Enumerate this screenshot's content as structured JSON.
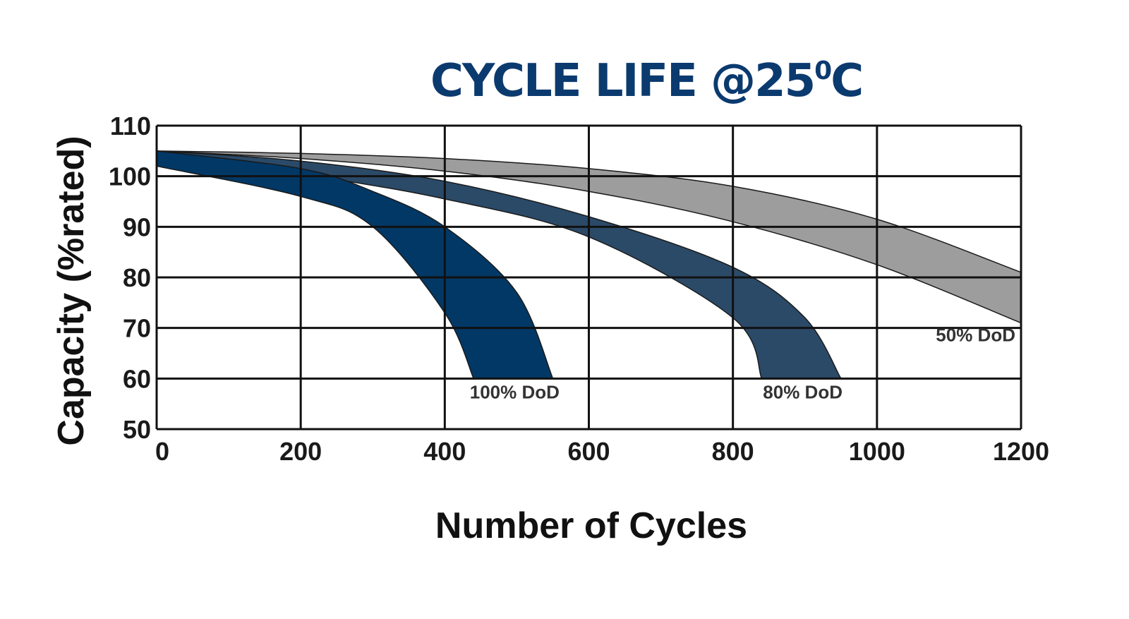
{
  "chart_data": {
    "type": "area",
    "title": "CYCLE LIFE @25",
    "title_superscript": "0",
    "title_suffix": "C",
    "xlabel": "Number of Cycles",
    "ylabel": "Capacity (%rated)",
    "xlim": [
      0,
      1200
    ],
    "ylim": [
      50,
      110
    ],
    "x_ticks": [
      0,
      200,
      400,
      600,
      800,
      1000,
      1200
    ],
    "y_ticks": [
      50,
      60,
      70,
      80,
      90,
      100,
      110
    ],
    "grid": true,
    "colors": {
      "title": "#0b3a6f"
    },
    "series": [
      {
        "name": "50% DoD",
        "color": "#9d9d9d",
        "upper": [
          [
            0,
            105
          ],
          [
            200,
            104.5
          ],
          [
            400,
            103.5
          ],
          [
            600,
            101.5
          ],
          [
            800,
            98
          ],
          [
            1000,
            91.5
          ],
          [
            1200,
            81
          ]
        ],
        "lower": [
          [
            0,
            105
          ],
          [
            200,
            103.5
          ],
          [
            400,
            101
          ],
          [
            600,
            97
          ],
          [
            800,
            91
          ],
          [
            1000,
            82.5
          ],
          [
            1200,
            71
          ]
        ]
      },
      {
        "name": "80% DoD",
        "color": "#2b4a68",
        "upper": [
          [
            0,
            105
          ],
          [
            200,
            103
          ],
          [
            400,
            99
          ],
          [
            600,
            92
          ],
          [
            800,
            82
          ],
          [
            900,
            72
          ],
          [
            950,
            60
          ]
        ],
        "lower": [
          [
            0,
            105
          ],
          [
            200,
            100.5
          ],
          [
            400,
            95.5
          ],
          [
            600,
            88
          ],
          [
            800,
            72
          ],
          [
            840,
            60
          ]
        ]
      },
      {
        "name": "100% DoD",
        "color": "#023866",
        "upper": [
          [
            0,
            105
          ],
          [
            200,
            101.5
          ],
          [
            300,
            97
          ],
          [
            400,
            90
          ],
          [
            500,
            77
          ],
          [
            550,
            60
          ]
        ],
        "lower": [
          [
            0,
            102
          ],
          [
            200,
            96
          ],
          [
            300,
            90
          ],
          [
            400,
            73
          ],
          [
            440,
            60
          ]
        ]
      }
    ]
  }
}
